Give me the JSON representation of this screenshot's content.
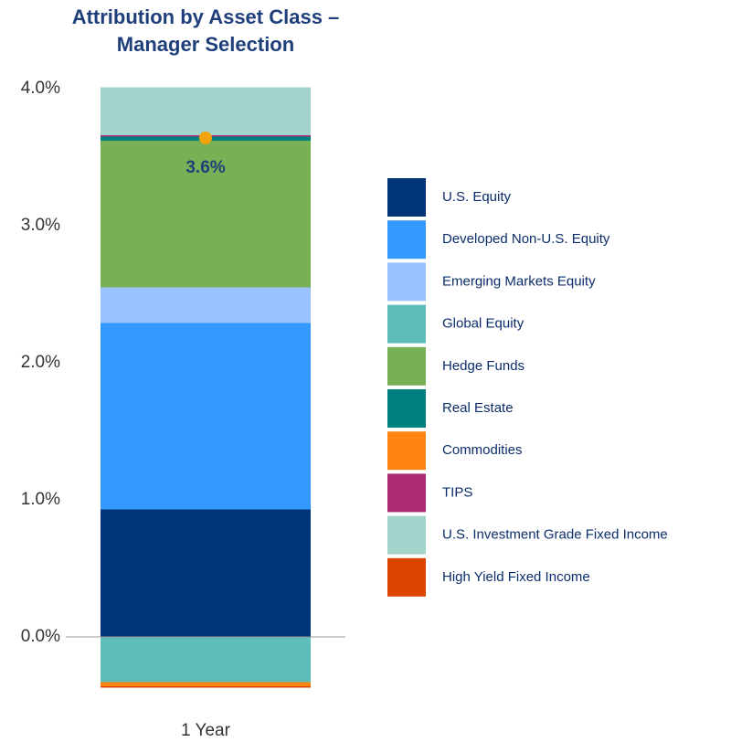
{
  "chart_data": {
    "type": "stacked_bar",
    "title": [
      "Attribution by Asset Class –",
      "Manager Selection"
    ],
    "categories": [
      "1 Year"
    ],
    "series": [
      {
        "name": "U.S. Equity",
        "color": "#003478",
        "values": [
          0.93
        ]
      },
      {
        "name": "Developed Non-U.S. Equity",
        "color": "#3399ff",
        "values": [
          1.36
        ]
      },
      {
        "name": "Emerging Markets Equity",
        "color": "#99c2ff",
        "values": [
          0.26
        ]
      },
      {
        "name": "Global Equity",
        "color": "#5cbdb9",
        "values": [
          -0.33
        ]
      },
      {
        "name": "Hedge Funds",
        "color": "#77b055",
        "values": [
          1.07
        ]
      },
      {
        "name": "Real Estate",
        "color": "#00817f",
        "values": [
          0.03
        ]
      },
      {
        "name": "Commodities",
        "color": "#ff8411",
        "values": [
          -0.03
        ]
      },
      {
        "name": "TIPS",
        "color": "#ad2b74",
        "values": [
          0.01
        ]
      },
      {
        "name": "U.S. Investment Grade Fixed Income",
        "color": "#a3d4cc",
        "values": [
          0.35
        ]
      },
      {
        "name": "High Yield Fixed Income",
        "color": "#db4500",
        "values": [
          -0.01
        ]
      }
    ],
    "total": {
      "values": [
        3.64
      ],
      "value_labels": [
        "3.6%"
      ],
      "color": "#f0a30a"
    },
    "ylim": [
      -0.5,
      4.1
    ],
    "yticks": [
      {
        "value": 0,
        "label": "0.0%"
      },
      {
        "value": 1,
        "label": "1.0%"
      },
      {
        "value": 2,
        "label": "2.0%"
      },
      {
        "value": 3,
        "label": "3.0%"
      },
      {
        "value": 4,
        "label": "4.0%"
      }
    ],
    "grid": false,
    "legend": "right"
  }
}
